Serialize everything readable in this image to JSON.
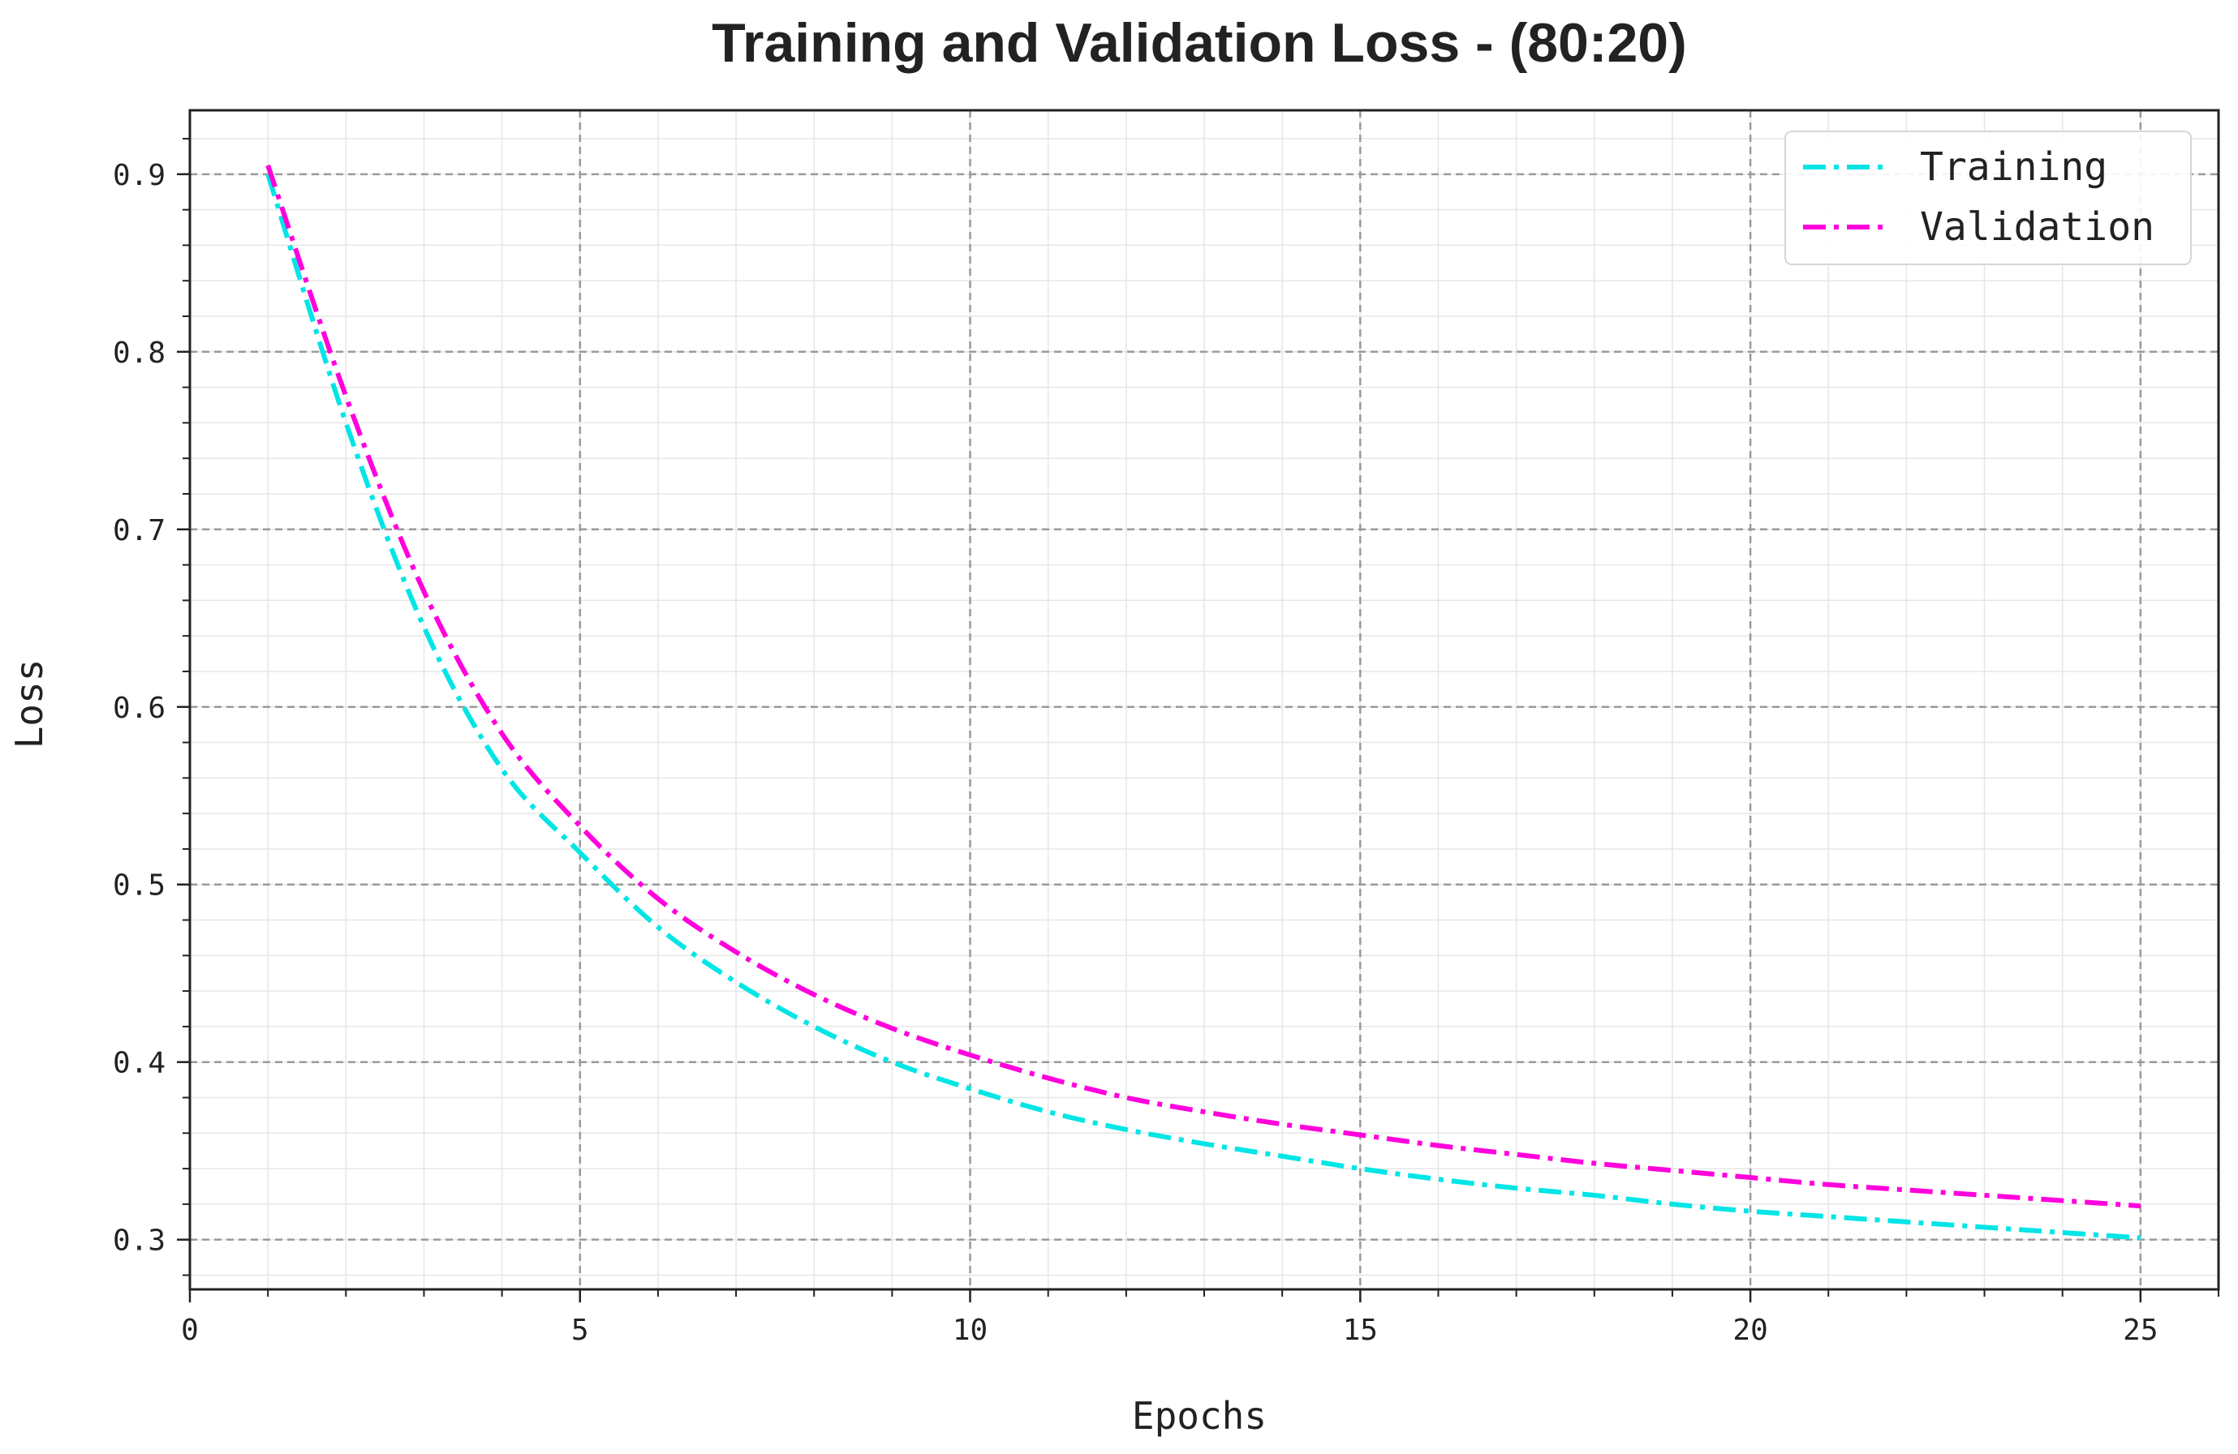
{
  "chart_data": {
    "type": "line",
    "title": "Training and Validation Loss - (80:20)",
    "xlabel": "Epochs",
    "ylabel": "Loss",
    "xlim": [
      0,
      26
    ],
    "ylim": [
      0.272,
      0.936
    ],
    "xticks": [
      0,
      5,
      10,
      15,
      20,
      25
    ],
    "xtick_labels": [
      "0",
      "5",
      "10",
      "15",
      "20",
      "25"
    ],
    "yticks": [
      0.3,
      0.4,
      0.5,
      0.6,
      0.7,
      0.8,
      0.9
    ],
    "ytick_labels": [
      "0.3",
      "0.4",
      "0.5",
      "0.6",
      "0.7",
      "0.8",
      "0.9"
    ],
    "grid": true,
    "legend_position": "top-right",
    "x": [
      1,
      2,
      3,
      4,
      5,
      6,
      7,
      8,
      9,
      10,
      11,
      12,
      13,
      14,
      15,
      16,
      17,
      18,
      19,
      20,
      21,
      22,
      23,
      24,
      25
    ],
    "series": [
      {
        "name": "Training",
        "color": "#00e5e5",
        "values": [
          0.9,
          0.76,
          0.645,
          0.565,
          0.518,
          0.476,
          0.445,
          0.42,
          0.4,
          0.385,
          0.372,
          0.362,
          0.354,
          0.347,
          0.34,
          0.334,
          0.329,
          0.325,
          0.32,
          0.316,
          0.313,
          0.31,
          0.307,
          0.304,
          0.301
        ]
      },
      {
        "name": "Validation",
        "color": "#ff00dd",
        "values": [
          0.905,
          0.775,
          0.665,
          0.585,
          0.533,
          0.492,
          0.462,
          0.438,
          0.419,
          0.404,
          0.391,
          0.38,
          0.372,
          0.365,
          0.359,
          0.353,
          0.348,
          0.343,
          0.339,
          0.335,
          0.331,
          0.328,
          0.325,
          0.322,
          0.319
        ]
      }
    ]
  }
}
